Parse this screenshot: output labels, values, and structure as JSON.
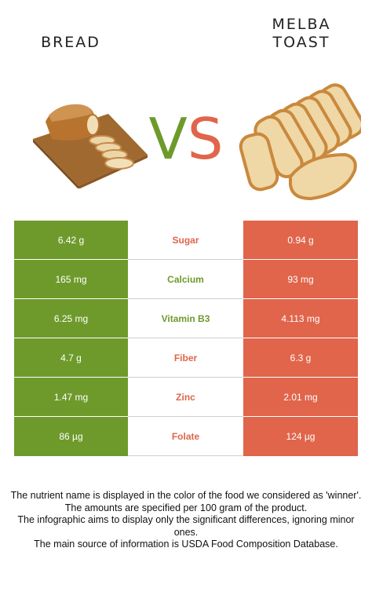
{
  "foods": {
    "left_name": "BREAD",
    "right_name_line1": "MELBA",
    "right_name_line2": "TOAST",
    "vs_v": "V",
    "vs_s": "S"
  },
  "colors": {
    "winner_left": "#6e9a2c",
    "winner_right": "#e0654b"
  },
  "rows": [
    {
      "left": "6.42 g",
      "nutrient": "Sugar",
      "right": "0.94 g",
      "winner": "right"
    },
    {
      "left": "165 mg",
      "nutrient": "Calcium",
      "right": "93 mg",
      "winner": "left"
    },
    {
      "left": "6.25 mg",
      "nutrient": "Vitamin B3",
      "right": "4.113 mg",
      "winner": "left"
    },
    {
      "left": "4.7 g",
      "nutrient": "Fiber",
      "right": "6.3 g",
      "winner": "right"
    },
    {
      "left": "1.47 mg",
      "nutrient": "Zinc",
      "right": "2.01 mg",
      "winner": "right"
    },
    {
      "left": "86 µg",
      "nutrient": "Folate",
      "right": "124 µg",
      "winner": "right"
    }
  ],
  "footnote": [
    "The nutrient name is displayed in the color of the food we considered as 'winner'.",
    "The amounts are specified per 100 gram of the product.",
    "The infographic aims to display only the significant differences, ignoring minor ones.",
    "The main source of information is USDA Food Composition Database."
  ]
}
